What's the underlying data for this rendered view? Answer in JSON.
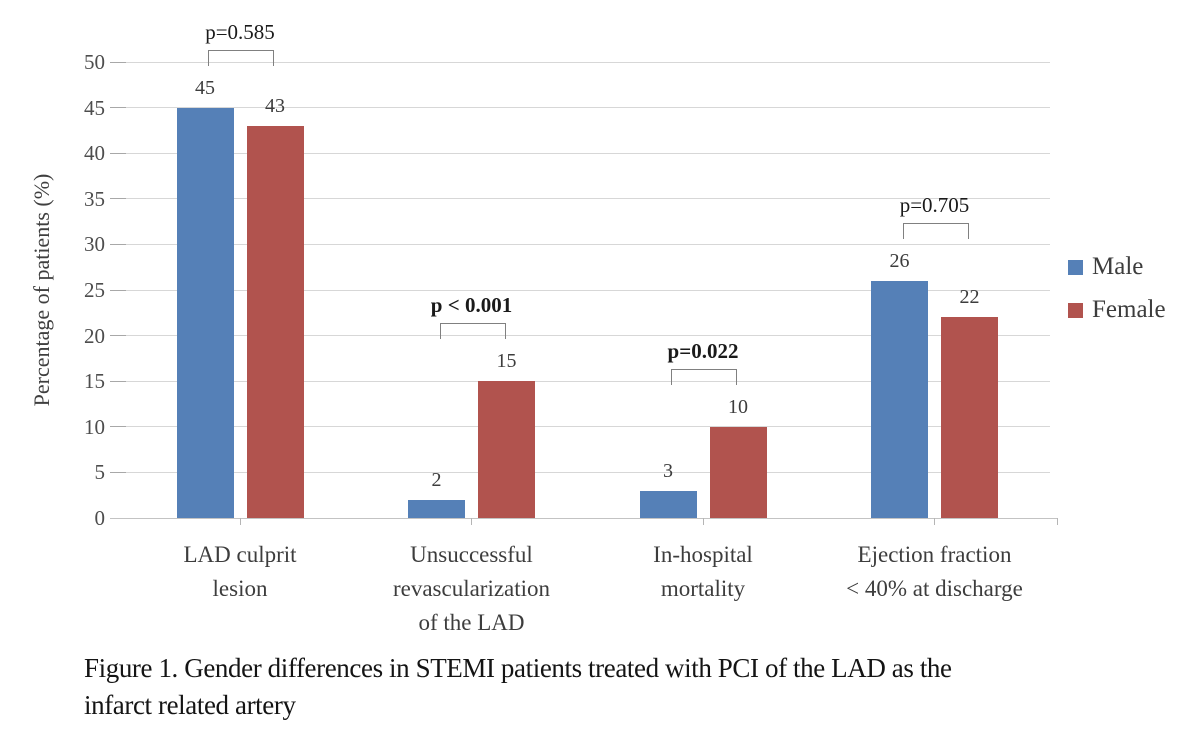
{
  "chart_data": {
    "type": "bar",
    "title": "",
    "categories": [
      "LAD culprit\nlesion",
      "Unsuccessful\nrevascularization\nof the LAD",
      "In-hospital\nmortality",
      "Ejection fraction\n< 40% at discharge"
    ],
    "series": [
      {
        "name": "Male",
        "color": "#5580B7",
        "values": [
          45,
          2,
          3,
          26
        ]
      },
      {
        "name": "Female",
        "color": "#B1534E",
        "values": [
          43,
          15,
          10,
          22
        ]
      }
    ],
    "p_values": [
      {
        "label": "p=0.585",
        "bold": false
      },
      {
        "label": "p < 0.001",
        "bold": true
      },
      {
        "label": "p=0.022",
        "bold": true
      },
      {
        "label": "p=0.705",
        "bold": false
      }
    ],
    "ylabel": "Percentage of patients (%)",
    "xlabel": "",
    "ylim": [
      0,
      50
    ],
    "yticks": [
      0,
      5,
      10,
      15,
      20,
      25,
      30,
      35,
      40,
      45,
      50
    ],
    "grid": true,
    "legend_position": "right",
    "style": {
      "gridline_color": "#d7d7d7",
      "axis_line_color": "#c3c3c3",
      "tick_color": "#a8a8a8",
      "bracket_color": "#808080"
    }
  },
  "caption": {
    "line1": "Figure 1. Gender differences in STEMI patients treated with PCI of the LAD as the",
    "line2": "infarct related artery"
  }
}
